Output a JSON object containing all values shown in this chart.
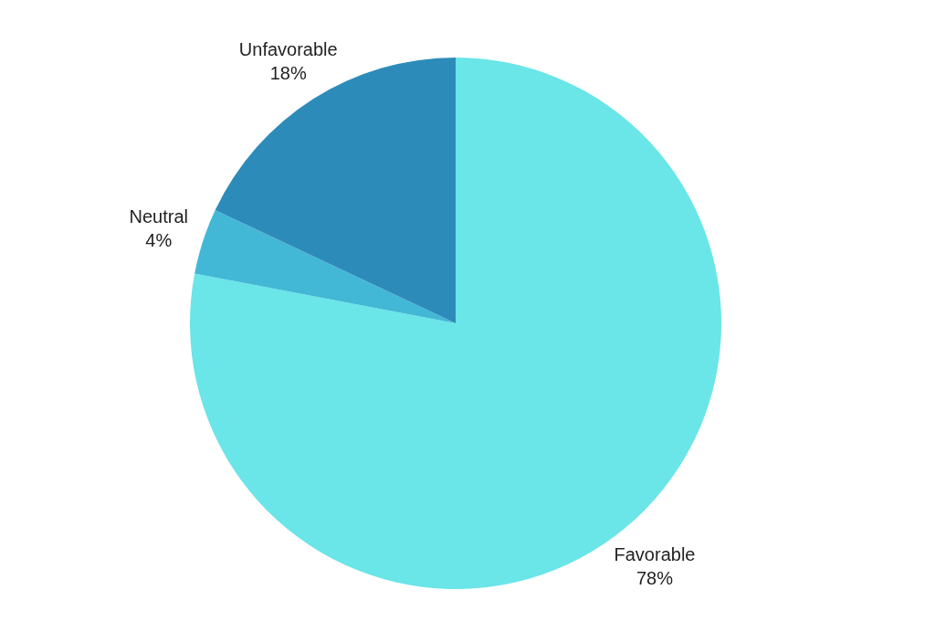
{
  "chart_data": {
    "type": "pie",
    "categories": [
      "Favorable",
      "Neutral",
      "Unfavorable"
    ],
    "values": [
      78,
      4,
      18
    ],
    "colors": [
      "#6ae5e8",
      "#42b8d6",
      "#2d8bba"
    ],
    "value_labels": [
      "78%",
      "4%",
      "18%"
    ]
  }
}
